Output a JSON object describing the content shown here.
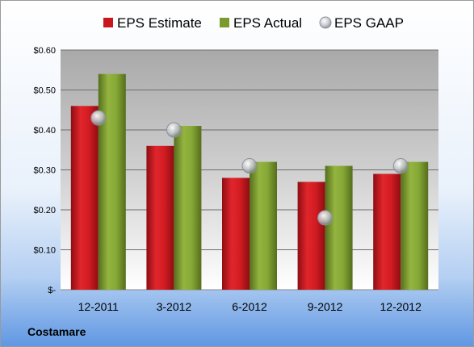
{
  "chart_data": {
    "type": "bar",
    "categories": [
      "12-2011",
      "3-2012",
      "6-2012",
      "9-2012",
      "12-2012"
    ],
    "series": [
      {
        "name": "EPS Estimate",
        "kind": "bar",
        "color": "#c8161d",
        "values": [
          0.46,
          0.36,
          0.28,
          0.27,
          0.29
        ]
      },
      {
        "name": "EPS Actual",
        "kind": "bar",
        "color": "#7a9a2e",
        "values": [
          0.54,
          0.41,
          0.32,
          0.31,
          0.32
        ]
      },
      {
        "name": "EPS GAAP",
        "kind": "marker",
        "color": "#b8bcc2",
        "values": [
          0.43,
          0.4,
          0.31,
          0.18,
          0.31
        ]
      }
    ],
    "ylim": [
      0,
      0.6
    ],
    "yticks": [
      0,
      0.1,
      0.2,
      0.3,
      0.4,
      0.5,
      0.6
    ],
    "ytick_labels": [
      "$-",
      "$0.10",
      "$0.20",
      "$0.30",
      "$0.40",
      "$0.50",
      "$0.60"
    ],
    "grid": true,
    "legend_position": "top"
  },
  "footer_text": "Costamare"
}
